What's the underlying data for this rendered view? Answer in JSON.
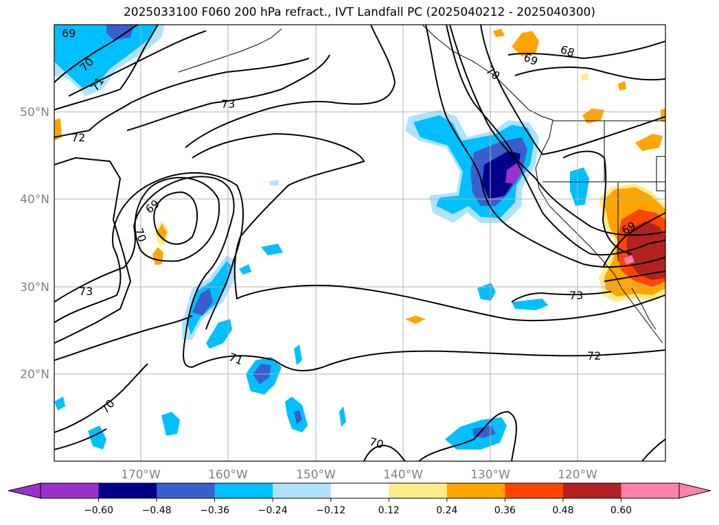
{
  "title": "2025033100 F060 200 hPa refract., IVT Landfall PC (2025040212 - 2025040300)",
  "latitude_labels": [
    "50°N",
    "40°N",
    "30°N",
    "20°N"
  ],
  "longitude_labels": [
    "170°W",
    "160°W",
    "150°W",
    "140°W",
    "130°W",
    "120°W"
  ],
  "colorbar": {
    "ticks": [
      "−0.60",
      "−0.48",
      "−0.36",
      "−0.24",
      "−0.12",
      "0.12",
      "0.24",
      "0.36",
      "0.48",
      "0.60"
    ],
    "colors": [
      "#9932cc",
      "#00008b",
      "#3a5fcd",
      "#00bfff",
      "#b0e2ff",
      "#ffffff",
      "#ffec8b",
      "#ffa500",
      "#ff4500",
      "#b22222",
      "#ff82ab"
    ]
  },
  "contour_labels": [
    "69",
    "70",
    "71",
    "73",
    "72",
    "69",
    "70",
    "73",
    "68",
    "69",
    "70",
    "69",
    "73",
    "72",
    "71",
    "70",
    "70"
  ]
}
